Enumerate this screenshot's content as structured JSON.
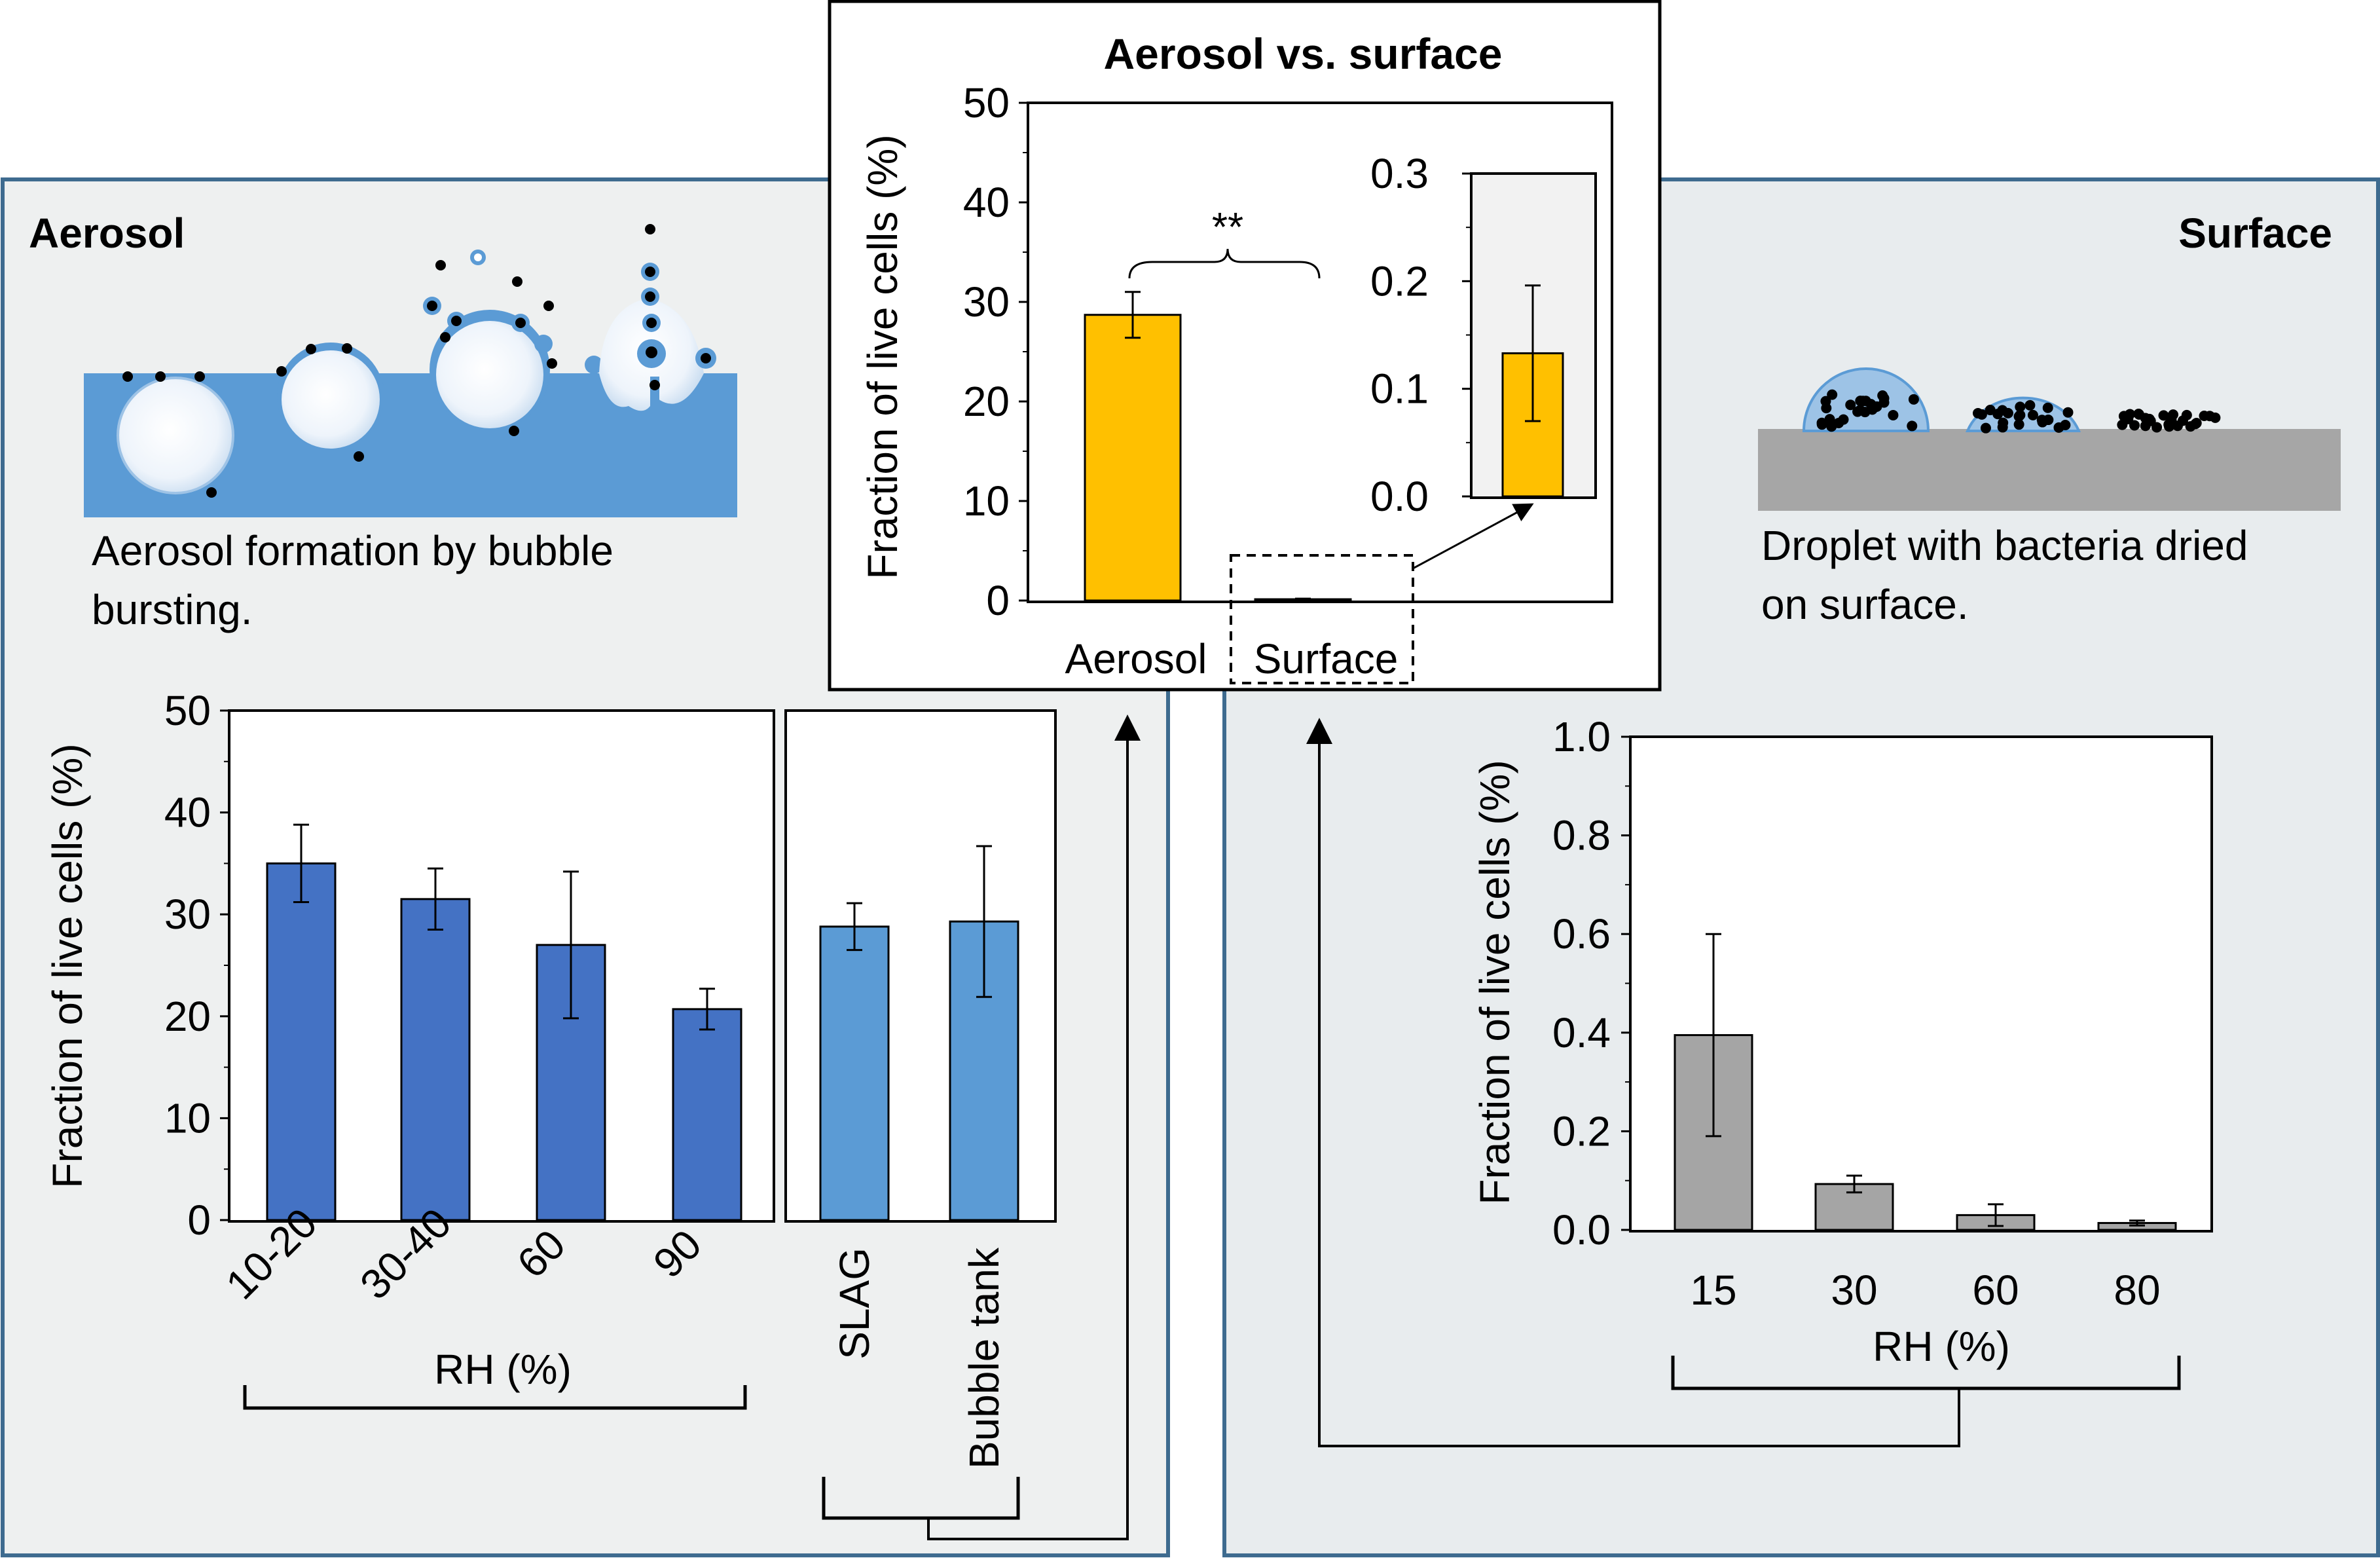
{
  "panels": {
    "aerosol": {
      "title": "Aerosol",
      "caption_line1": "Aerosol formation by bubble",
      "caption_line2": "bursting.",
      "panel_bg": "#eef0f0",
      "border_color": "#3e6b8f"
    },
    "surface": {
      "title": "Surface",
      "caption_line1": "Droplet with bacteria dried",
      "caption_line2": "on surface.",
      "panel_bg": "#e8ecee",
      "border_color": "#3e6b8f"
    }
  },
  "colors": {
    "water": "#5b9bd5",
    "bar_dark_blue": "#4472c4",
    "bar_light_blue": "#5b9bd5",
    "bar_gold": "#ffc000",
    "bar_gray": "#a5a5a5",
    "surface_slab": "#a6a6a6"
  },
  "chart_data": [
    {
      "id": "aerosol-rh",
      "type": "bar",
      "categories": [
        "10-20",
        "30-40",
        "60",
        "90"
      ],
      "values": [
        35,
        31.5,
        27,
        20.7
      ],
      "errors": [
        3.8,
        3,
        7.2,
        2
      ],
      "ylim": [
        0,
        50
      ],
      "yticks": [
        0,
        10,
        20,
        30,
        40,
        50
      ],
      "ylabel": "Fraction of live cells (%)",
      "xlabel": "RH (%)"
    },
    {
      "id": "aerosol-source",
      "type": "bar",
      "categories": [
        "SLAG",
        "Bubble tank"
      ],
      "values": [
        28.8,
        29.3
      ],
      "errors": [
        2.3,
        7.4
      ],
      "ylim": [
        0,
        50
      ]
    },
    {
      "id": "aerosol-vs-surface",
      "type": "bar",
      "title": "Aerosol vs. surface",
      "categories": [
        "Aerosol",
        "Surface"
      ],
      "values": [
        28.7,
        0.13
      ],
      "errors": [
        2.3,
        0.063
      ],
      "ylim": [
        0,
        50
      ],
      "yticks": [
        0,
        10,
        20,
        30,
        40,
        50
      ],
      "ylabel": "Fraction of live cells (%)",
      "annotation": "**"
    },
    {
      "id": "surface-inset",
      "type": "bar",
      "categories": [
        "Surface"
      ],
      "values": [
        0.133
      ],
      "errors": [
        0.063
      ],
      "ylim": [
        0,
        0.3
      ],
      "yticks": [
        "0.0",
        "0.1",
        "0.2",
        "0.3"
      ]
    },
    {
      "id": "surface-rh",
      "type": "bar",
      "categories": [
        "15",
        "30",
        "60",
        "80"
      ],
      "values": [
        0.395,
        0.093,
        0.03,
        0.014
      ],
      "errors": [
        0.205,
        0.017,
        0.022,
        0.005
      ],
      "ylim": [
        0,
        1.0
      ],
      "yticks": [
        "0.0",
        "0.2",
        "0.4",
        "0.6",
        "0.8",
        "1.0"
      ],
      "ylabel": "Fraction of live cells (%)",
      "xlabel": "RH (%)"
    }
  ]
}
